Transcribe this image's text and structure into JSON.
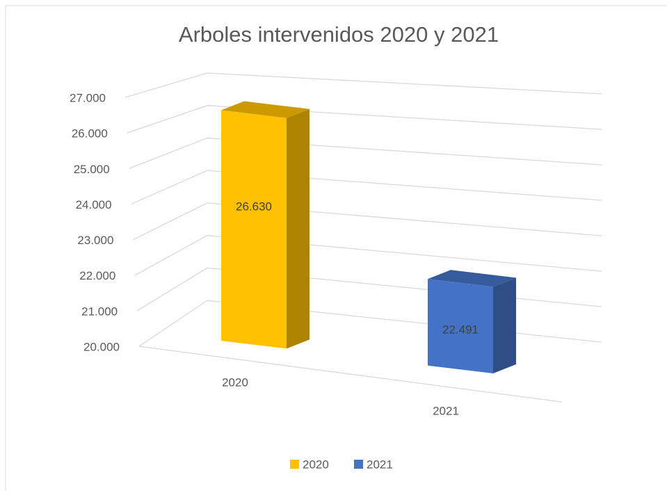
{
  "chart_data": {
    "type": "bar3d",
    "title": "Arboles intervenidos 2020 y 2021",
    "categories": [
      "2020",
      "2021"
    ],
    "series": [
      {
        "name": "2020",
        "color": "#ffc000",
        "values": [
          26630,
          null
        ],
        "value_labels": [
          "26.630",
          null
        ]
      },
      {
        "name": "2021",
        "color": "#4472c4",
        "values": [
          null,
          22491
        ],
        "value_labels": [
          null,
          "22.491"
        ]
      }
    ],
    "ylim": [
      20000,
      27000
    ],
    "yticks": [
      {
        "value": 20000,
        "label": "20.000"
      },
      {
        "value": 21000,
        "label": "21.000"
      },
      {
        "value": 22000,
        "label": "22.000"
      },
      {
        "value": 23000,
        "label": "23.000"
      },
      {
        "value": 24000,
        "label": "24.000"
      },
      {
        "value": 25000,
        "label": "25.000"
      },
      {
        "value": 26000,
        "label": "26.000"
      },
      {
        "value": 27000,
        "label": "27.000"
      }
    ],
    "grid": true,
    "legend": "bottom"
  }
}
